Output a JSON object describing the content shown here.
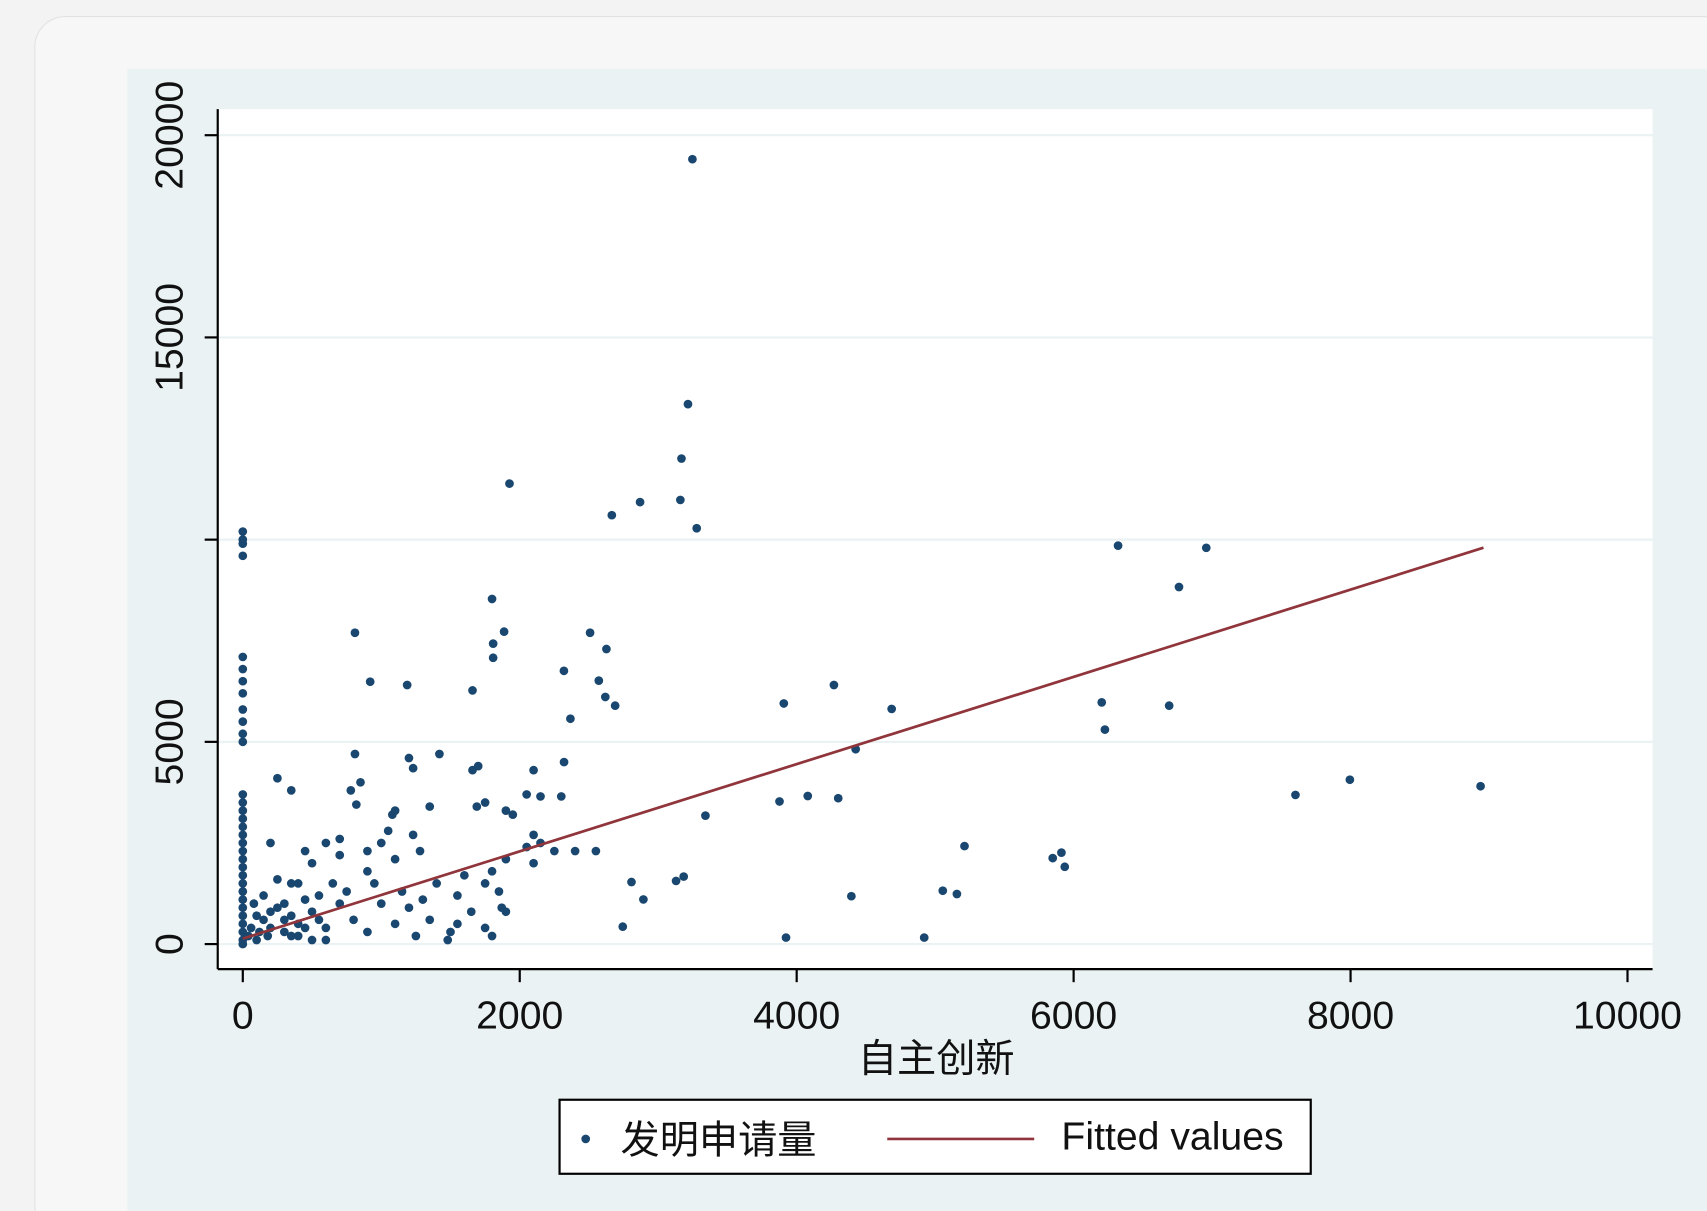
{
  "chart_data": {
    "type": "scatter",
    "xlabel": "自主创新",
    "xlim": [
      -181,
      10181
    ],
    "ylim": [
      -619,
      20646
    ],
    "xticks": [
      0,
      2000,
      4000,
      6000,
      8000,
      10000
    ],
    "yticks": [
      0,
      5000,
      {
        "value": 10000,
        "label": null
      },
      15000,
      20000
    ],
    "grid": true,
    "legend": "bottom",
    "series": [
      {
        "name": "发明申请量",
        "type": "scatter",
        "color": "#1a476f",
        "x": [
          3247,
          3215,
          3168,
          3160,
          3278,
          1926,
          2665,
          2869,
          6321,
          6958,
          6761,
          1800,
          1887,
          1808,
          1808,
          810,
          2508,
          2626,
          2319,
          2571,
          2618,
          2689,
          2366,
          920,
          1187,
          1659,
          3907,
          4269,
          4686,
          4426,
          6203,
          6226,
          6690,
          7602,
          7995,
          8939,
          3876,
          4080,
          4300,
          3341,
          5212,
          5849,
          5912,
          5936,
          5055,
          5157,
          4395,
          3923,
          4921,
          2807,
          2893,
          3129,
          3184,
          2744,
          0,
          0,
          0,
          0,
          0,
          0,
          0,
          0,
          0,
          0,
          0,
          0,
          0,
          0,
          0,
          0,
          0,
          0,
          0,
          0,
          0,
          0,
          0,
          0,
          0,
          0,
          0,
          0,
          0,
          0,
          0,
          0,
          1659,
          1700,
          1420,
          1200,
          1230,
          810,
          850,
          780,
          820,
          1080,
          1100,
          1350,
          1690,
          1750,
          1900,
          1950,
          2050,
          2100,
          2150,
          2300,
          2320,
          2100,
          2150,
          2050,
          2250,
          2400,
          2100,
          2550,
          1900,
          1800,
          1600,
          1750,
          1850,
          1900,
          1870,
          1750,
          1550,
          1500,
          1480,
          1350,
          1200,
          1150,
          1100,
          1280,
          1230,
          1050,
          1000,
          900,
          700,
          600,
          500,
          450,
          350,
          300,
          250,
          200,
          150,
          100,
          120,
          80,
          60,
          40,
          400,
          500,
          600,
          700,
          800,
          900,
          1000,
          1100,
          1250,
          1400,
          1550,
          1650,
          1800,
          350,
          250,
          650,
          750,
          550,
          450,
          300,
          200,
          180,
          350,
          600,
          950,
          1300,
          900,
          700,
          400,
          100,
          200,
          300,
          400,
          500,
          150,
          250,
          350,
          450,
          550
        ],
        "values": [
          19407,
          13351,
          12005,
          10982,
          10282,
          11386,
          10605,
          10928,
          9852,
          9798,
          8829,
          8533,
          7725,
          7429,
          7079,
          7698,
          7698,
          7295,
          6756,
          6514,
          6110,
          5895,
          5572,
          6487,
          6406,
          6272,
          5949,
          6406,
          5814,
          4818,
          5976,
          5303,
          5895,
          3688,
          4064,
          3903,
          3526,
          3661,
          3607,
          3176,
          2423,
          2126,
          2261,
          1911,
          1319,
          1238,
          1184,
          161,
          161,
          1534,
          1104,
          1561,
          1669,
          431,
          10200,
          10000,
          9900,
          9600,
          7100,
          6800,
          6500,
          6200,
          5800,
          5500,
          5200,
          5000,
          3700,
          3500,
          3300,
          3100,
          2900,
          2700,
          2500,
          2300,
          2100,
          1900,
          1700,
          1500,
          1300,
          1100,
          900,
          700,
          500,
          300,
          100,
          0,
          4300,
          4400,
          4700,
          4600,
          4350,
          4700,
          4000,
          3800,
          3450,
          3200,
          3300,
          3400,
          3400,
          3500,
          3300,
          3200,
          3700,
          4300,
          3650,
          3650,
          4500,
          2700,
          2500,
          2400,
          2300,
          2300,
          2000,
          2300,
          2100,
          1800,
          1700,
          1500,
          1300,
          800,
          900,
          400,
          500,
          300,
          100,
          600,
          900,
          1300,
          2100,
          2300,
          2700,
          2800,
          2500,
          1800,
          2200,
          2500,
          2000,
          2300,
          1500,
          1000,
          1600,
          2500,
          1200,
          700,
          300,
          1000,
          400,
          200,
          500,
          800,
          400,
          1000,
          600,
          300,
          1000,
          500,
          200,
          1500,
          1200,
          800,
          200,
          3800,
          4100,
          1500,
          1300,
          1200,
          1100,
          600,
          800,
          200,
          200,
          100,
          1500,
          1100,
          2300,
          2600,
          1500,
          100,
          400,
          300,
          200,
          100,
          600,
          900,
          700,
          400,
          600
        ]
      },
      {
        "name": "Fitted values",
        "type": "line",
        "color": "#90353b",
        "x": [
          0,
          8960
        ],
        "values": [
          135,
          9800
        ]
      }
    ]
  }
}
